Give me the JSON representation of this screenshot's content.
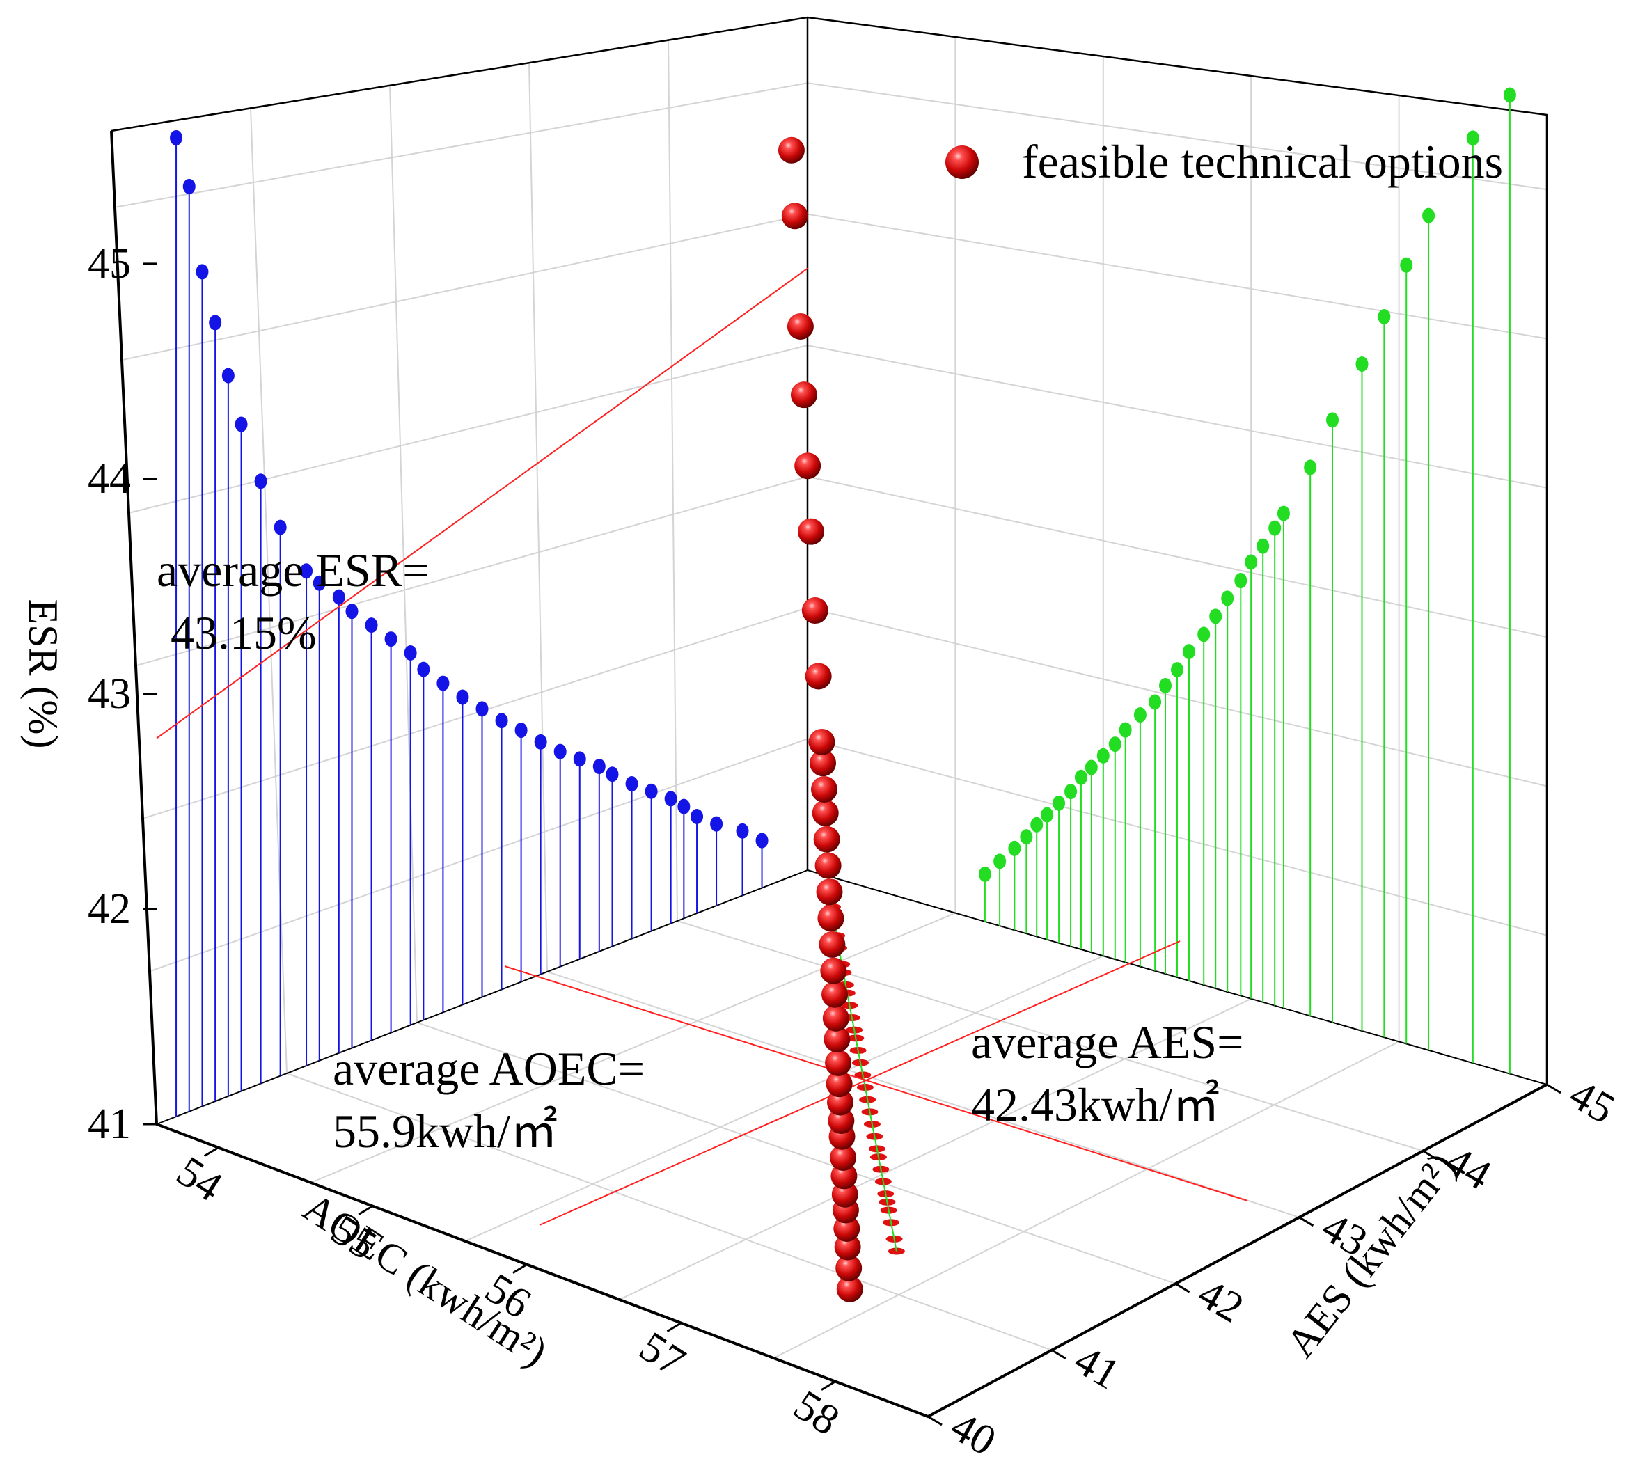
{
  "chart_data": {
    "type": "scatter3d",
    "title": "",
    "axes": {
      "x": {
        "label": "AOEC (kwh/m²)",
        "ticks": [
          "54",
          "55",
          "56",
          "57",
          "58"
        ],
        "range": [
          53.6,
          58.6
        ]
      },
      "y": {
        "label": "AES (kwh/m²)",
        "ticks": [
          "40",
          "41",
          "42",
          "43",
          "44",
          "45"
        ],
        "range": [
          40,
          45
        ]
      },
      "z": {
        "label": "ESR (%)",
        "ticks": [
          "41",
          "42",
          "43",
          "44",
          "45"
        ],
        "range": [
          41,
          45.65
        ]
      }
    },
    "legend": {
      "label": "feasible technical options",
      "position": "top-right"
    },
    "series": [
      {
        "name": "feasible technical options",
        "color": "#d81010",
        "points": [
          {
            "aoec": 58.25,
            "aes": 41.2,
            "esr": 41.22
          },
          {
            "aoec": 58.1,
            "aes": 41.3,
            "esr": 41.3
          },
          {
            "aoec": 57.9,
            "aes": 41.4,
            "esr": 41.38
          },
          {
            "aoec": 57.75,
            "aes": 41.48,
            "esr": 41.45
          },
          {
            "aoec": 57.65,
            "aes": 41.55,
            "esr": 41.52
          },
          {
            "aoec": 57.55,
            "aes": 41.62,
            "esr": 41.58
          },
          {
            "aoec": 57.4,
            "aes": 41.7,
            "esr": 41.65
          },
          {
            "aoec": 57.25,
            "aes": 41.78,
            "esr": 41.72
          },
          {
            "aoec": 57.1,
            "aes": 41.85,
            "esr": 41.8
          },
          {
            "aoec": 57.0,
            "aes": 41.92,
            "esr": 41.86
          },
          {
            "aoec": 56.85,
            "aes": 42.0,
            "esr": 41.93
          },
          {
            "aoec": 56.7,
            "aes": 42.08,
            "esr": 42.0
          },
          {
            "aoec": 56.55,
            "aes": 42.15,
            "esr": 42.08
          },
          {
            "aoec": 56.4,
            "aes": 42.25,
            "esr": 42.17
          },
          {
            "aoec": 56.25,
            "aes": 42.35,
            "esr": 42.25
          },
          {
            "aoec": 56.1,
            "aes": 42.42,
            "esr": 42.34
          },
          {
            "aoec": 55.95,
            "aes": 42.5,
            "esr": 42.43
          },
          {
            "aoec": 55.8,
            "aes": 42.58,
            "esr": 42.53
          },
          {
            "aoec": 55.65,
            "aes": 42.68,
            "esr": 42.63
          },
          {
            "aoec": 55.55,
            "aes": 42.76,
            "esr": 42.73
          },
          {
            "aoec": 55.4,
            "aes": 42.84,
            "esr": 42.83
          },
          {
            "aoec": 55.25,
            "aes": 42.93,
            "esr": 42.93
          },
          {
            "aoec": 55.1,
            "aes": 43.0,
            "esr": 43.03
          },
          {
            "aoec": 55.0,
            "aes": 43.08,
            "esr": 43.12
          },
          {
            "aoec": 54.85,
            "aes": 43.16,
            "esr": 43.22
          },
          {
            "aoec": 54.75,
            "aes": 43.22,
            "esr": 43.3
          },
          {
            "aoec": 54.55,
            "aes": 43.4,
            "esr": 43.55
          },
          {
            "aoec": 54.4,
            "aes": 43.55,
            "esr": 43.8
          },
          {
            "aoec": 54.25,
            "aes": 43.75,
            "esr": 44.1
          },
          {
            "aoec": 54.15,
            "aes": 43.9,
            "esr": 44.35
          },
          {
            "aoec": 54.05,
            "aes": 44.05,
            "esr": 44.62
          },
          {
            "aoec": 53.95,
            "aes": 44.2,
            "esr": 44.88
          },
          {
            "aoec": 53.85,
            "aes": 44.5,
            "esr": 45.3
          },
          {
            "aoec": 53.75,
            "aes": 44.75,
            "esr": 45.55
          }
        ]
      }
    ],
    "projections": {
      "esr_vs_aoec_wall": {
        "color": "#1414e6"
      },
      "esr_vs_aes_wall": {
        "color": "#22dd22"
      },
      "floor_aoec_vs_aes": {
        "color": "#e01010"
      }
    },
    "reference_lines": [
      {
        "name": "average ESR",
        "value": 43.15,
        "color": "#ff2020"
      },
      {
        "name": "average AOEC",
        "value": 55.9,
        "color": "#ff2020"
      },
      {
        "name": "average AES",
        "value": 42.43,
        "color": "#ff2020"
      }
    ],
    "annotations": [
      {
        "line1": "average ESR=",
        "line2": "43.15%"
      },
      {
        "line1": "average AOEC=",
        "line2": "55.9kwh/㎡"
      },
      {
        "line1": "average AES=",
        "line2": "42.43kwh/㎡"
      }
    ],
    "grid": true
  }
}
